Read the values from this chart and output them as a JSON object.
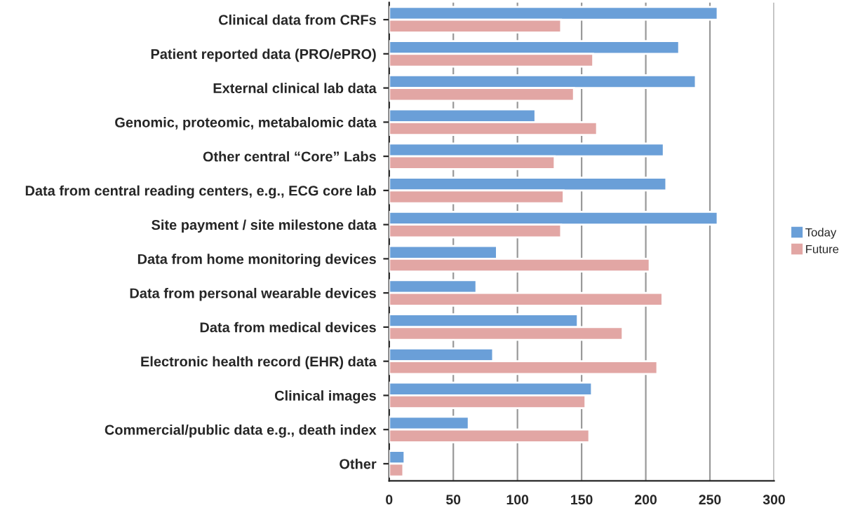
{
  "chart_data": {
    "type": "bar",
    "orientation": "horizontal",
    "categories": [
      "Clinical data from CRFs",
      "Patient reported data (PRO/ePRO)",
      "External clinical lab data",
      "Genomic, proteomic, metabalomic data",
      "Other central “Core” Labs",
      "Data from central reading centers, e.g., ECG core lab",
      "Site payment / site milestone data",
      "Data from home monitoring devices",
      "Data from personal wearable devices",
      "Data from medical devices",
      "Electronic health record (EHR) data",
      "Clinical images",
      "Commercial/public data e.g., death index",
      "Other"
    ],
    "series": [
      {
        "name": "Today",
        "color": "#6a9fd8",
        "values": [
          256,
          226,
          239,
          114,
          214,
          216,
          256,
          84,
          68,
          147,
          81,
          158,
          62,
          12
        ]
      },
      {
        "name": "Future",
        "color": "#e2a6a4",
        "values": [
          134,
          159,
          144,
          162,
          129,
          136,
          134,
          203,
          213,
          182,
          209,
          153,
          156,
          11
        ]
      }
    ],
    "xlim": [
      0,
      300
    ],
    "xticks": [
      0,
      50,
      100,
      150,
      200,
      250,
      300
    ],
    "grid": "x",
    "legend": "right"
  }
}
